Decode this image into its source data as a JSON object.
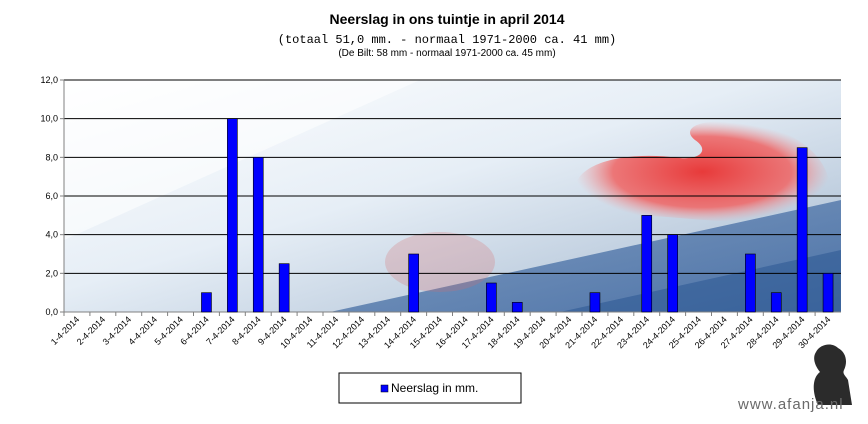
{
  "chart_data": {
    "type": "bar",
    "title": "Neerslag  in  ons  tuintje  in  april  2014",
    "subtitle": "(totaal 51,0 mm.  - normaal  1971-2000  ca. 41 mm)",
    "subtitle2": "(De Bilt: 58 mm - normaal 1971-2000 ca. 45 mm)",
    "categories": [
      "1-4-2014",
      "2-4-2014",
      "3-4-2014",
      "4-4-2014",
      "5-4-2014",
      "6-4-2014",
      "7-4-2014",
      "8-4-2014",
      "9-4-2014",
      "10-4-2014",
      "11-4-2014",
      "12-4-2014",
      "13-4-2014",
      "14-4-2014",
      "15-4-2014",
      "16-4-2014",
      "17-4-2014",
      "18-4-2014",
      "19-4-2014",
      "20-4-2014",
      "21-4-2014",
      "22-4-2014",
      "23-4-2014",
      "24-4-2014",
      "25-4-2014",
      "26-4-2014",
      "27-4-2014",
      "28-4-2014",
      "29-4-2014",
      "30-4-2014"
    ],
    "series": [
      {
        "name": "Neerslag in mm.",
        "color": "#0000ff",
        "values": [
          0,
          0,
          0,
          0,
          0,
          1.0,
          10.0,
          8.0,
          2.5,
          0,
          0,
          0,
          0,
          3.0,
          0,
          0,
          1.5,
          0.5,
          0,
          0,
          1.0,
          0,
          5.0,
          4.0,
          0,
          0,
          3.0,
          1.0,
          8.5,
          2.0
        ]
      }
    ],
    "ylim": [
      0,
      12
    ],
    "yticks": [
      "0,0",
      "2,0",
      "4,0",
      "6,0",
      "8,0",
      "10,0",
      "12,0"
    ],
    "grid": true,
    "legend_position": "bottom"
  },
  "watermark": "www.afanja.nl"
}
